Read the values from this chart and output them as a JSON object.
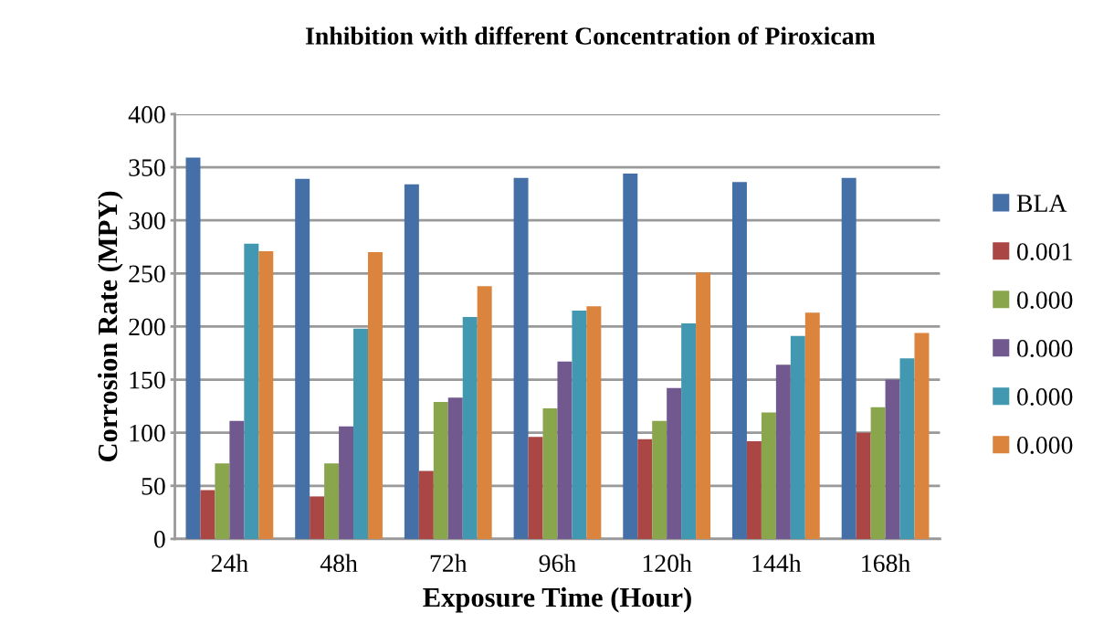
{
  "chart_data": {
    "type": "bar",
    "title": "Inhibition with different Concentration of Piroxicam",
    "xlabel": "Exposure Time (Hour)",
    "ylabel": "Corrosion Rate (MPY)",
    "categories": [
      "24h",
      "48h",
      "72h",
      "96h",
      "120h",
      "144h",
      "168h"
    ],
    "series": [
      {
        "name": "BLA",
        "color": "#4470a7",
        "values": [
          359,
          339,
          334,
          340,
          344,
          336,
          340
        ]
      },
      {
        "name": "0.001",
        "color": "#aa4644",
        "values": [
          46,
          40,
          64,
          96,
          94,
          92,
          100
        ]
      },
      {
        "name": "0.000",
        "color": "#8aa64d",
        "values": [
          71,
          71,
          129,
          123,
          111,
          119,
          124
        ]
      },
      {
        "name": "0.000",
        "color": "#71588f",
        "values": [
          111,
          106,
          133,
          167,
          142,
          164,
          150
        ]
      },
      {
        "name": "0.000",
        "color": "#4298b0",
        "values": [
          278,
          198,
          209,
          215,
          203,
          191,
          170
        ]
      },
      {
        "name": "0.000",
        "color": "#db843d",
        "values": [
          271,
          270,
          238,
          219,
          251,
          213,
          194
        ]
      }
    ],
    "ylim": [
      0,
      400
    ],
    "yticks": [
      0,
      50,
      100,
      150,
      200,
      250,
      300,
      350,
      400
    ],
    "grid": "y",
    "legend": "right"
  }
}
